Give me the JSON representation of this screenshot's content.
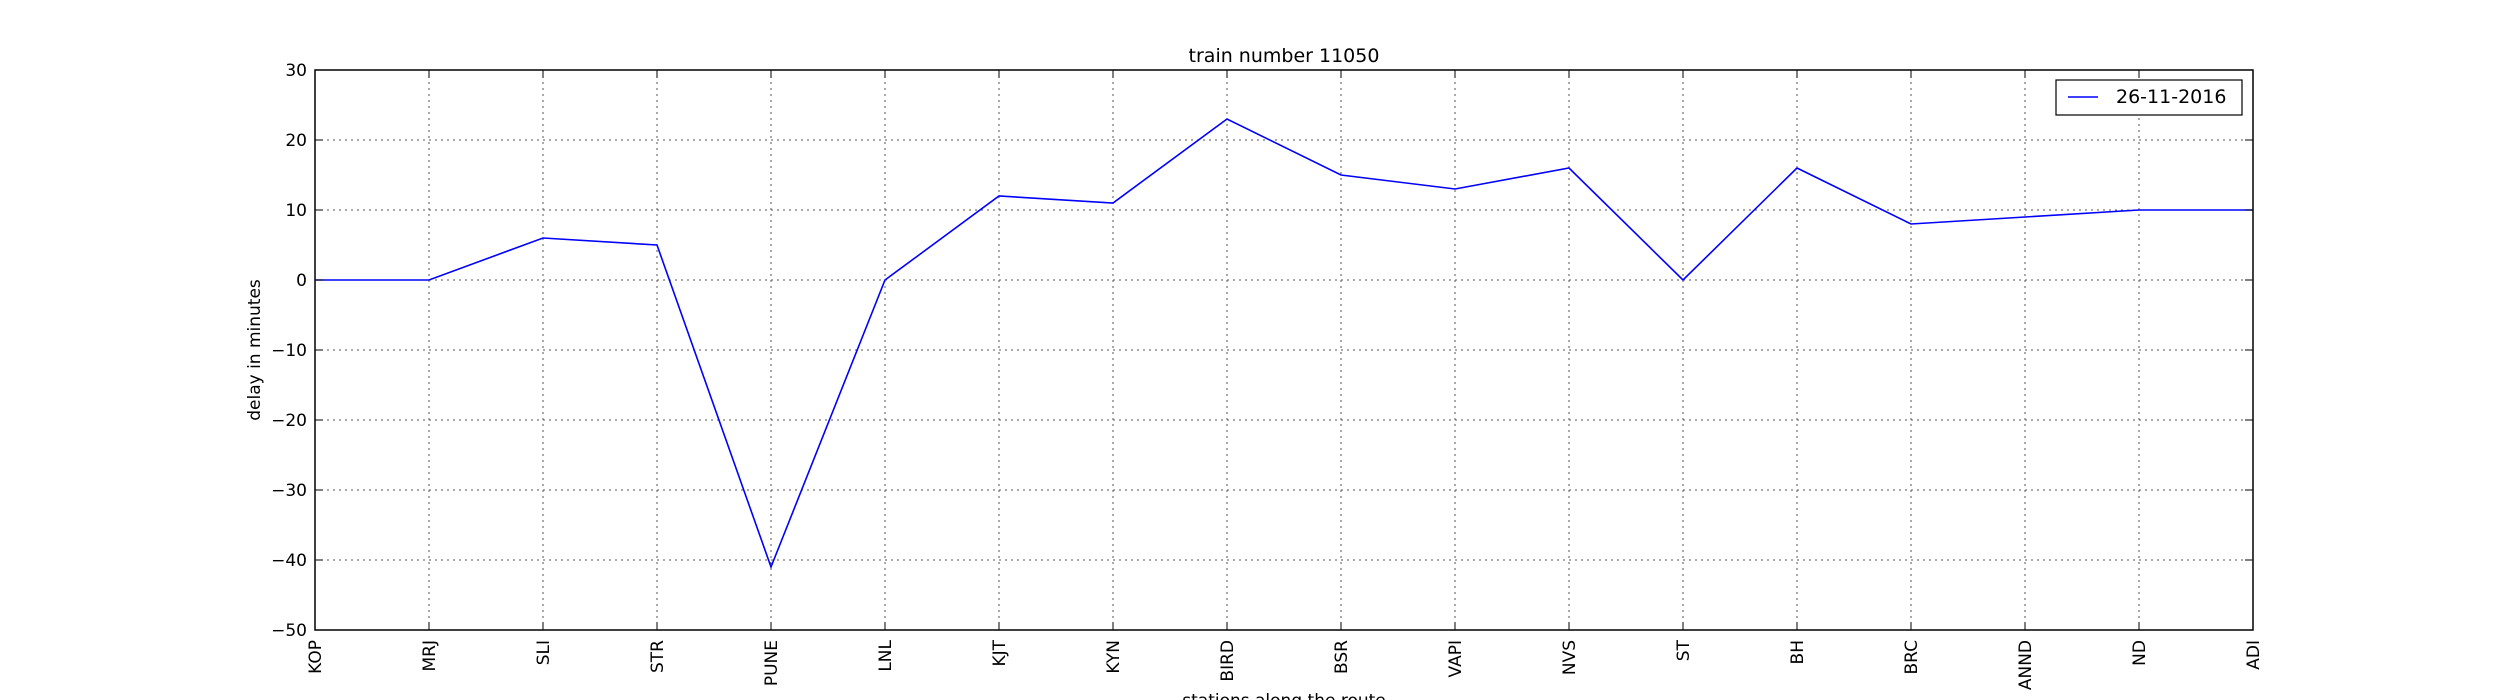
{
  "chart_data": {
    "type": "line",
    "title": "train number 11050",
    "xlabel": "stations along the route",
    "ylabel": "delay in minutes",
    "categories": [
      "KOP",
      "MRJ",
      "SLI",
      "STR",
      "PUNE",
      "LNL",
      "KJT",
      "KYN",
      "BIRD",
      "BSR",
      "VAPI",
      "NVS",
      "ST",
      "BH",
      "BRC",
      "ANND",
      "ND",
      "ADI"
    ],
    "series": [
      {
        "name": "26-11-2016",
        "color": "#0000ff",
        "values": [
          0,
          0,
          6,
          5,
          -41,
          0,
          12,
          11,
          23,
          15,
          13,
          16,
          0,
          16,
          8,
          9,
          10,
          10
        ]
      }
    ],
    "ylim": [
      -50,
      30
    ],
    "yticks": [
      -50,
      -40,
      -30,
      -20,
      -10,
      0,
      10,
      20,
      30
    ],
    "yticklabels": [
      "−50",
      "−40",
      "−30",
      "−20",
      "−10",
      "0",
      "10",
      "20",
      "30"
    ],
    "grid": true,
    "legend_position": "top-right"
  }
}
